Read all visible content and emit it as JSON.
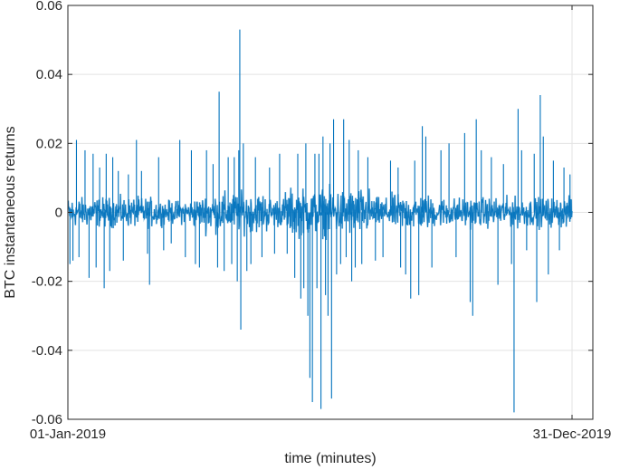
{
  "chart_data": {
    "type": "line",
    "title": "",
    "xlabel": "time (minutes)",
    "ylabel": "BTC instantaneous returns",
    "x_ticks": [
      "01-Jan-2019",
      "31-Dec-2019"
    ],
    "x_range": [
      "01-Jan-2019",
      "31-Dec-2019"
    ],
    "ylim": [
      -0.06,
      0.06
    ],
    "y_ticks": [
      -0.06,
      -0.04,
      -0.02,
      0,
      0.02,
      0.04,
      0.06
    ],
    "y_tick_labels": [
      "-0.06",
      "-0.04",
      "-0.02",
      "0",
      "0.02",
      "0.04",
      "0.06"
    ],
    "grid": true,
    "color": "#0072BD",
    "series": [
      {
        "name": "",
        "noise_band": 0.006,
        "spikes": [
          {
            "t": 0.0,
            "value": 0.015
          },
          {
            "t": 0.004,
            "value": -0.015
          },
          {
            "t": 0.01,
            "value": -0.014
          },
          {
            "t": 0.017,
            "value": 0.021
          },
          {
            "t": 0.022,
            "value": -0.013
          },
          {
            "t": 0.034,
            "value": 0.018
          },
          {
            "t": 0.042,
            "value": -0.019
          },
          {
            "t": 0.05,
            "value": 0.017
          },
          {
            "t": 0.056,
            "value": -0.016
          },
          {
            "t": 0.063,
            "value": 0.013
          },
          {
            "t": 0.072,
            "value": -0.022
          },
          {
            "t": 0.076,
            "value": 0.017
          },
          {
            "t": 0.083,
            "value": -0.017
          },
          {
            "t": 0.089,
            "value": 0.016
          },
          {
            "t": 0.1,
            "value": 0.012
          },
          {
            "t": 0.11,
            "value": -0.014
          },
          {
            "t": 0.12,
            "value": 0.011
          },
          {
            "t": 0.136,
            "value": 0.021
          },
          {
            "t": 0.146,
            "value": 0.012
          },
          {
            "t": 0.158,
            "value": -0.012
          },
          {
            "t": 0.162,
            "value": -0.021
          },
          {
            "t": 0.18,
            "value": 0.016
          },
          {
            "t": 0.19,
            "value": -0.011
          },
          {
            "t": 0.205,
            "value": -0.009
          },
          {
            "t": 0.222,
            "value": 0.021
          },
          {
            "t": 0.233,
            "value": -0.013
          },
          {
            "t": 0.245,
            "value": 0.018
          },
          {
            "t": 0.253,
            "value": -0.015
          },
          {
            "t": 0.261,
            "value": -0.016
          },
          {
            "t": 0.275,
            "value": 0.018
          },
          {
            "t": 0.288,
            "value": 0.014
          },
          {
            "t": 0.297,
            "value": -0.016
          },
          {
            "t": 0.3,
            "value": 0.035
          },
          {
            "t": 0.31,
            "value": -0.017
          },
          {
            "t": 0.318,
            "value": 0.016
          },
          {
            "t": 0.325,
            "value": -0.015
          },
          {
            "t": 0.33,
            "value": 0.016
          },
          {
            "t": 0.336,
            "value": -0.02
          },
          {
            "t": 0.339,
            "value": 0.018
          },
          {
            "t": 0.341,
            "value": 0.053
          },
          {
            "t": 0.343,
            "value": -0.034
          },
          {
            "t": 0.348,
            "value": 0.02
          },
          {
            "t": 0.355,
            "value": -0.017
          },
          {
            "t": 0.363,
            "value": -0.015
          },
          {
            "t": 0.372,
            "value": 0.016
          },
          {
            "t": 0.385,
            "value": -0.013
          },
          {
            "t": 0.4,
            "value": 0.013
          },
          {
            "t": 0.41,
            "value": -0.012
          },
          {
            "t": 0.42,
            "value": 0.017
          },
          {
            "t": 0.435,
            "value": -0.012
          },
          {
            "t": 0.45,
            "value": -0.019
          },
          {
            "t": 0.456,
            "value": 0.017
          },
          {
            "t": 0.462,
            "value": -0.025
          },
          {
            "t": 0.468,
            "value": -0.022
          },
          {
            "t": 0.472,
            "value": 0.02
          },
          {
            "t": 0.476,
            "value": -0.03
          },
          {
            "t": 0.48,
            "value": -0.048
          },
          {
            "t": 0.485,
            "value": -0.055
          },
          {
            "t": 0.49,
            "value": 0.017
          },
          {
            "t": 0.494,
            "value": -0.022
          },
          {
            "t": 0.498,
            "value": 0.017
          },
          {
            "t": 0.502,
            "value": -0.057
          },
          {
            "t": 0.506,
            "value": 0.022
          },
          {
            "t": 0.511,
            "value": -0.024
          },
          {
            "t": 0.516,
            "value": -0.03
          },
          {
            "t": 0.52,
            "value": 0.02
          },
          {
            "t": 0.523,
            "value": -0.054
          },
          {
            "t": 0.527,
            "value": 0.027
          },
          {
            "t": 0.533,
            "value": -0.018
          },
          {
            "t": 0.541,
            "value": -0.015
          },
          {
            "t": 0.547,
            "value": 0.027
          },
          {
            "t": 0.552,
            "value": -0.013
          },
          {
            "t": 0.558,
            "value": 0.021
          },
          {
            "t": 0.563,
            "value": -0.02
          },
          {
            "t": 0.57,
            "value": -0.016
          },
          {
            "t": 0.576,
            "value": 0.018
          },
          {
            "t": 0.583,
            "value": -0.015
          },
          {
            "t": 0.595,
            "value": 0.016
          },
          {
            "t": 0.61,
            "value": -0.014
          },
          {
            "t": 0.625,
            "value": -0.013
          },
          {
            "t": 0.64,
            "value": 0.015
          },
          {
            "t": 0.655,
            "value": 0.013
          },
          {
            "t": 0.66,
            "value": -0.016
          },
          {
            "t": 0.67,
            "value": -0.018
          },
          {
            "t": 0.68,
            "value": -0.025
          },
          {
            "t": 0.688,
            "value": 0.015
          },
          {
            "t": 0.696,
            "value": -0.024
          },
          {
            "t": 0.703,
            "value": 0.025
          },
          {
            "t": 0.71,
            "value": 0.022
          },
          {
            "t": 0.722,
            "value": -0.016
          },
          {
            "t": 0.74,
            "value": 0.018
          },
          {
            "t": 0.756,
            "value": 0.02
          },
          {
            "t": 0.77,
            "value": -0.013
          },
          {
            "t": 0.787,
            "value": 0.023
          },
          {
            "t": 0.798,
            "value": -0.026
          },
          {
            "t": 0.803,
            "value": -0.03
          },
          {
            "t": 0.81,
            "value": 0.027
          },
          {
            "t": 0.82,
            "value": 0.018
          },
          {
            "t": 0.84,
            "value": 0.016
          },
          {
            "t": 0.853,
            "value": -0.021
          },
          {
            "t": 0.864,
            "value": 0.014
          },
          {
            "t": 0.88,
            "value": -0.015
          },
          {
            "t": 0.885,
            "value": -0.058
          },
          {
            "t": 0.893,
            "value": 0.03
          },
          {
            "t": 0.9,
            "value": 0.018
          },
          {
            "t": 0.91,
            "value": -0.011
          },
          {
            "t": 0.925,
            "value": 0.017
          },
          {
            "t": 0.93,
            "value": -0.026
          },
          {
            "t": 0.937,
            "value": 0.034
          },
          {
            "t": 0.943,
            "value": 0.022
          },
          {
            "t": 0.953,
            "value": -0.018
          },
          {
            "t": 0.963,
            "value": 0.015
          },
          {
            "t": 0.975,
            "value": -0.011
          },
          {
            "t": 0.984,
            "value": 0.013
          },
          {
            "t": 0.996,
            "value": 0.011
          }
        ]
      }
    ]
  }
}
